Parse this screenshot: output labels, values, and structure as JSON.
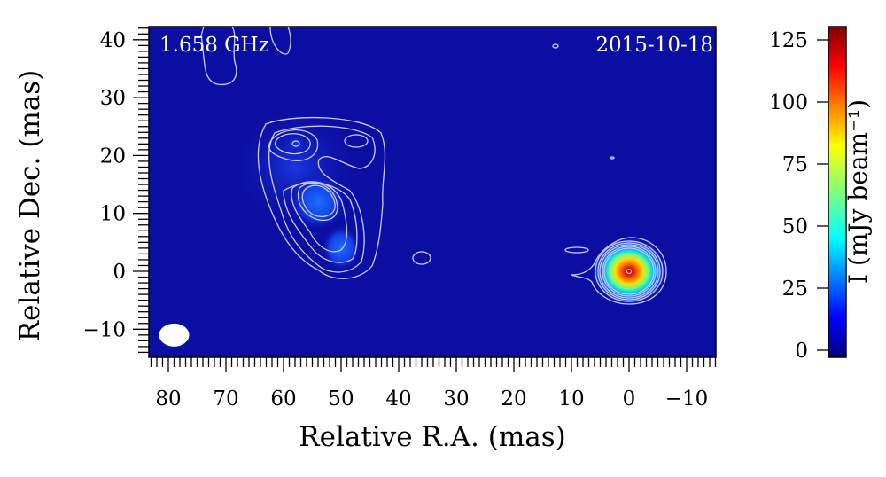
{
  "chart_data": {
    "type": "heatmap",
    "annotations": {
      "frequency": "1.658 GHz",
      "date": "2015-10-18"
    },
    "xlabel": "Relative R.A. (mas)",
    "ylabel": "Relative Dec. (mas)",
    "xlim": [
      83.4,
      -15
    ],
    "ylim": [
      -15,
      42.3
    ],
    "xticks": [
      80,
      70,
      60,
      50,
      40,
      30,
      20,
      10,
      0,
      -10
    ],
    "xtick_labels": [
      "80",
      "70",
      "60",
      "50",
      "40",
      "30",
      "20",
      "10",
      "0",
      "−10"
    ],
    "yticks": [
      40,
      30,
      20,
      10,
      0,
      -10
    ],
    "ytick_labels": [
      "40",
      "30",
      "20",
      "10",
      "0",
      "−10"
    ],
    "colorbar": {
      "label": "I (mJy beam⁻¹)",
      "colormap": "jet",
      "range": [
        -3,
        130
      ],
      "ticks": [
        125,
        100,
        75,
        50,
        25,
        0
      ],
      "tick_labels": [
        "125",
        "100",
        "75",
        "50",
        "25",
        "0"
      ]
    },
    "background_color": "#0b0ea3",
    "contour_color": "#c8c8ff",
    "components": [
      {
        "name": "",
        "x": 0,
        "y": 0,
        "peak": 125
      },
      {
        "name": "",
        "x": 54,
        "y": 12,
        "peak": 15
      },
      {
        "name": "",
        "x": 58,
        "y": 22,
        "peak": 9
      },
      {
        "name": "",
        "x": 50,
        "y": 4,
        "peak": 9
      }
    ],
    "beam": {
      "x": 79,
      "y": -11,
      "color": "#ffffff"
    },
    "grid": false
  }
}
